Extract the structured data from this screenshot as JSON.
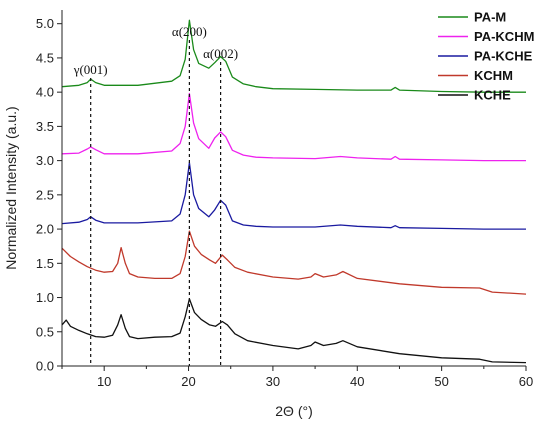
{
  "chart_data": {
    "type": "line",
    "xlabel": "2Θ (°)",
    "ylabel": "Normalized Intensity (a.u.)",
    "xlim": [
      5,
      60
    ],
    "ylim": [
      0,
      5.2
    ],
    "xticks": [
      "10",
      "20",
      "30",
      "40",
      "50",
      "60"
    ],
    "yticks": [
      "0.0",
      "0.5",
      "1.0",
      "1.5",
      "2.0",
      "2.5",
      "3.0",
      "3.5",
      "4.0",
      "4.5",
      "5.0"
    ],
    "grid": false,
    "legend_position": "top-right",
    "annotations": [
      {
        "label": "γ(001)",
        "x": 8.4
      },
      {
        "label": "α(200)",
        "x": 20.1
      },
      {
        "label": "α(002)",
        "x": 23.8
      }
    ],
    "series": [
      {
        "name": "PA-M",
        "color": "#1a8a1a",
        "x": [
          5,
          7,
          8,
          8.4,
          9,
          10,
          14,
          18,
          19,
          19.6,
          20.1,
          20.6,
          21.2,
          22.4,
          23.1,
          23.8,
          24.4,
          25.2,
          26.5,
          28,
          30,
          35,
          40,
          44,
          44.5,
          45,
          50,
          55,
          60
        ],
        "y": [
          4.08,
          4.1,
          4.14,
          4.19,
          4.14,
          4.1,
          4.1,
          4.16,
          4.24,
          4.48,
          5.05,
          4.62,
          4.42,
          4.35,
          4.43,
          4.52,
          4.45,
          4.22,
          4.12,
          4.08,
          4.05,
          4.04,
          4.03,
          4.03,
          4.07,
          4.03,
          4.01,
          4.0,
          4.0
        ]
      },
      {
        "name": "PA-KCHM",
        "color": "#ee22ee",
        "x": [
          5,
          7,
          8,
          8.4,
          9,
          10,
          14,
          18,
          19,
          19.6,
          20.1,
          20.6,
          21.2,
          22.4,
          23.1,
          23.8,
          24.4,
          25.2,
          26.5,
          28,
          30,
          35,
          38,
          40,
          44,
          44.5,
          45,
          50,
          55,
          60
        ],
        "y": [
          3.1,
          3.11,
          3.17,
          3.2,
          3.16,
          3.1,
          3.1,
          3.14,
          3.25,
          3.5,
          3.98,
          3.55,
          3.32,
          3.18,
          3.33,
          3.42,
          3.35,
          3.15,
          3.08,
          3.05,
          3.04,
          3.03,
          3.06,
          3.04,
          3.02,
          3.06,
          3.02,
          3.01,
          3.0,
          3.0
        ]
      },
      {
        "name": "PA-KCHE",
        "color": "#1a1aa0",
        "x": [
          5,
          7,
          8,
          8.4,
          9,
          10,
          14,
          18,
          19,
          19.6,
          20.1,
          20.6,
          21.2,
          22.4,
          23.1,
          23.8,
          24.4,
          25.2,
          26.5,
          28,
          30,
          35,
          38,
          40,
          44,
          44.5,
          45,
          50,
          55,
          60
        ],
        "y": [
          2.08,
          2.1,
          2.14,
          2.18,
          2.13,
          2.09,
          2.09,
          2.12,
          2.22,
          2.5,
          2.97,
          2.5,
          2.3,
          2.18,
          2.28,
          2.42,
          2.35,
          2.12,
          2.06,
          2.04,
          2.03,
          2.03,
          2.06,
          2.04,
          2.02,
          2.05,
          2.02,
          2.01,
          2.0,
          2.0
        ]
      },
      {
        "name": "KCHM",
        "color": "#c0392b",
        "x": [
          5,
          6,
          7,
          8,
          9,
          10,
          11,
          11.6,
          12,
          12.5,
          13,
          14,
          16,
          18,
          19,
          19.6,
          20.1,
          20.7,
          21.5,
          22.5,
          23.2,
          24,
          24.6,
          25.5,
          27,
          30,
          33,
          34.5,
          35,
          36,
          37.5,
          38.3,
          40,
          45,
          50,
          54.5,
          56,
          60
        ],
        "y": [
          1.72,
          1.6,
          1.52,
          1.45,
          1.4,
          1.37,
          1.38,
          1.5,
          1.73,
          1.5,
          1.35,
          1.3,
          1.28,
          1.28,
          1.35,
          1.6,
          1.97,
          1.75,
          1.63,
          1.55,
          1.5,
          1.62,
          1.55,
          1.44,
          1.37,
          1.3,
          1.27,
          1.3,
          1.35,
          1.3,
          1.33,
          1.38,
          1.28,
          1.2,
          1.15,
          1.14,
          1.08,
          1.05
        ]
      },
      {
        "name": "KCHE",
        "color": "#111111",
        "x": [
          5,
          5.5,
          6,
          7,
          8,
          9,
          10,
          11,
          11.6,
          12,
          12.5,
          13,
          14,
          16,
          18,
          19,
          19.6,
          20.1,
          20.7,
          21.5,
          22.5,
          23.2,
          24,
          24.6,
          25.5,
          27,
          30,
          33,
          34.5,
          35,
          36,
          37.5,
          38.3,
          40,
          45,
          50,
          54.5,
          56,
          60
        ],
        "y": [
          0.6,
          0.67,
          0.58,
          0.52,
          0.47,
          0.43,
          0.42,
          0.45,
          0.6,
          0.75,
          0.55,
          0.43,
          0.4,
          0.42,
          0.43,
          0.48,
          0.72,
          0.98,
          0.78,
          0.68,
          0.6,
          0.58,
          0.65,
          0.6,
          0.47,
          0.37,
          0.3,
          0.25,
          0.3,
          0.35,
          0.3,
          0.33,
          0.37,
          0.28,
          0.18,
          0.12,
          0.1,
          0.06,
          0.05
        ]
      }
    ]
  }
}
